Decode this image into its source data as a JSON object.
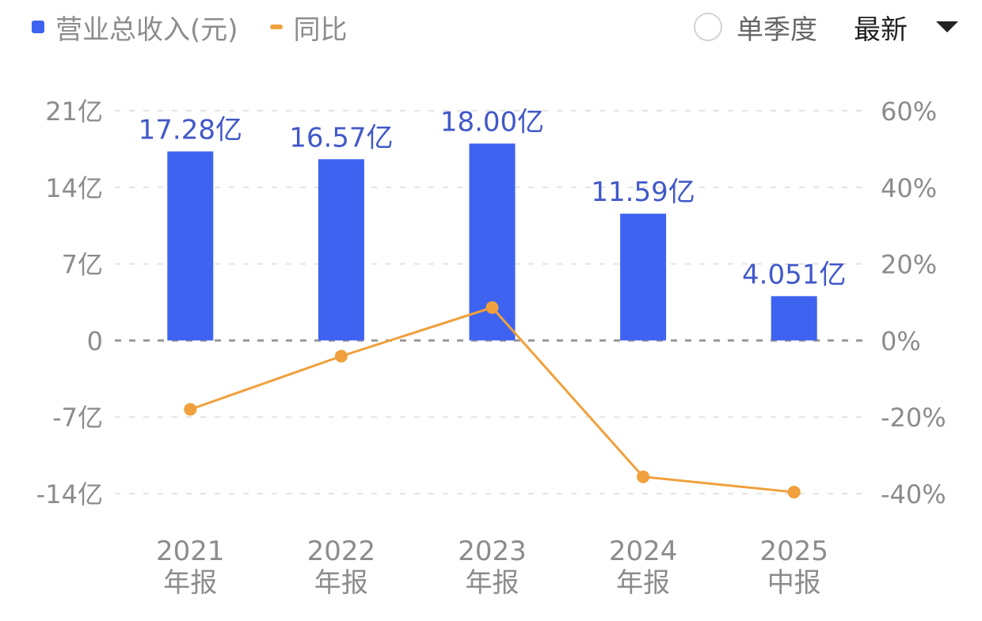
{
  "legend": {
    "items": [
      {
        "label": "营业总收入(元)",
        "type": "bar",
        "color": "#3d63f0"
      },
      {
        "label": "同比",
        "type": "line",
        "color": "#f0a03c"
      }
    ]
  },
  "controls": {
    "quarter_radio_label": "单季度",
    "quarter_radio_checked": false,
    "sort_dropdown_label": "最新"
  },
  "colors": {
    "bar": "#3d63f0",
    "bar_label": "#4158c8",
    "line": "#f0a03c",
    "axis_text": "#8c8c8c",
    "grid": "#e3e3e3",
    "zero_line": "#9a9a9a"
  },
  "chart_data": {
    "type": "bar+line",
    "title": "",
    "categories": [
      "2021\n年报",
      "2022\n年报",
      "2023\n年报",
      "2024\n年报",
      "2025\n中报"
    ],
    "category_labels": [
      {
        "year": "2021",
        "period": "年报"
      },
      {
        "year": "2022",
        "period": "年报"
      },
      {
        "year": "2023",
        "period": "年报"
      },
      {
        "year": "2024",
        "period": "年报"
      },
      {
        "year": "2025",
        "period": "中报"
      }
    ],
    "series": [
      {
        "name": "营业总收入(元)",
        "type": "bar",
        "axis": "left",
        "unit": "亿",
        "values": [
          17.28,
          16.57,
          18.0,
          11.59,
          4.051
        ],
        "data_labels": [
          "17.28亿",
          "16.57亿",
          "18.00亿",
          "11.59亿",
          "4.051亿"
        ]
      },
      {
        "name": "同比",
        "type": "line",
        "axis": "right",
        "unit": "%",
        "values": [
          -18.0,
          -4.1,
          8.6,
          -35.6,
          -39.6
        ]
      }
    ],
    "left_axis": {
      "ylim": [
        -14,
        21
      ],
      "ticks": [
        21,
        14,
        7,
        0,
        -7,
        -14
      ],
      "tick_labels": [
        "21亿",
        "14亿",
        "7亿",
        "0",
        "-7亿",
        "-14亿"
      ]
    },
    "right_axis": {
      "ylim": [
        -40,
        60
      ],
      "ticks": [
        60,
        40,
        20,
        0,
        -20,
        -40
      ],
      "tick_labels": [
        "60%",
        "40%",
        "20%",
        "0%",
        "-20%",
        "-40%"
      ]
    },
    "grid": true,
    "legend_position": "top-left"
  }
}
